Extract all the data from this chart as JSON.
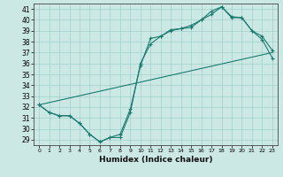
{
  "xlabel": "Humidex (Indice chaleur)",
  "bg_color": "#cce8e4",
  "line_color": "#1a7a6e",
  "xlim": [
    -0.5,
    23.5
  ],
  "ylim": [
    28.5,
    41.5
  ],
  "xticks": [
    0,
    1,
    2,
    3,
    4,
    5,
    6,
    7,
    8,
    9,
    10,
    11,
    12,
    13,
    14,
    15,
    16,
    17,
    18,
    19,
    20,
    21,
    22,
    23
  ],
  "yticks": [
    29,
    30,
    31,
    32,
    33,
    34,
    35,
    36,
    37,
    38,
    39,
    40,
    41
  ],
  "line1_x": [
    0,
    1,
    2,
    3,
    4,
    5,
    6,
    7,
    8,
    9,
    10,
    11,
    12,
    13,
    14,
    15,
    16,
    17,
    18,
    19,
    20,
    21,
    22,
    23
  ],
  "line1_y": [
    32.2,
    31.5,
    31.2,
    31.2,
    30.5,
    29.5,
    28.8,
    29.2,
    29.2,
    31.5,
    36.0,
    37.8,
    38.5,
    39.0,
    39.2,
    39.3,
    40.0,
    40.5,
    41.2,
    40.2,
    40.2,
    39.0,
    38.2,
    36.5
  ],
  "line2_x": [
    0,
    1,
    2,
    3,
    4,
    5,
    6,
    7,
    8,
    9,
    10,
    11,
    12,
    13,
    14,
    15,
    16,
    17,
    18,
    19,
    20,
    21,
    22,
    23
  ],
  "line2_y": [
    32.2,
    31.5,
    31.2,
    31.2,
    30.5,
    29.5,
    28.8,
    29.2,
    29.5,
    31.8,
    35.8,
    38.3,
    38.5,
    39.1,
    39.2,
    39.5,
    40.0,
    40.8,
    41.2,
    40.3,
    40.2,
    39.0,
    38.5,
    37.2
  ],
  "line3_x": [
    0,
    23
  ],
  "line3_y": [
    32.2,
    37.0
  ]
}
